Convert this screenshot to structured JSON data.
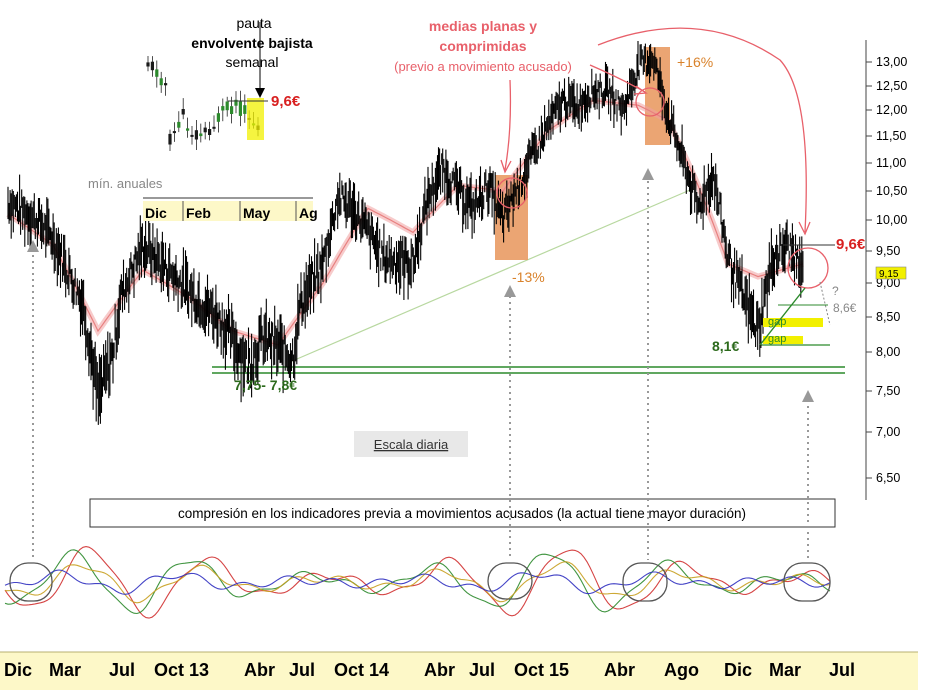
{
  "chart_data": {
    "type": "line",
    "title": "",
    "price_axis": {
      "ticks": [
        "13,00",
        "12,50",
        "12,00",
        "11,50",
        "11,00",
        "10,50",
        "10,00",
        "9,50",
        "9,00",
        "8,50",
        "8,00",
        "7,50",
        "7,00",
        "6,50"
      ],
      "tick_values": [
        13.0,
        12.5,
        12.0,
        11.5,
        11.0,
        10.5,
        10.0,
        9.5,
        9.0,
        8.5,
        8.0,
        7.5,
        7.0,
        6.5
      ],
      "ylim": [
        6.3,
        13.3
      ],
      "current_price_label": "9,15",
      "current_price": 9.15
    },
    "x_axis": {
      "labels": [
        "Dic",
        "Mar",
        "Jul",
        "Oct 13",
        "Abr",
        "Jul",
        "Oct 14",
        "Abr",
        "Jul",
        "Oct 15",
        "Abr",
        "Ago",
        "Dic",
        "Mar",
        "Jul"
      ],
      "label_months": [
        0,
        3,
        7,
        10,
        16,
        19,
        22,
        28,
        31,
        34,
        40,
        44,
        48,
        51,
        55
      ]
    },
    "series": [
      {
        "name": "",
        "color": "#000000",
        "months": [
          0,
          2,
          3,
          5,
          6,
          7,
          7.5,
          9,
          12,
          14,
          16,
          17,
          19,
          19.5,
          21,
          22,
          23,
          25,
          27,
          28,
          29,
          30,
          31,
          32,
          33,
          34,
          36,
          37,
          38,
          39,
          40,
          41,
          42,
          43,
          44,
          46,
          47,
          48,
          49,
          50,
          51,
          52,
          53
        ],
        "values": [
          10.3,
          10.0,
          9.7,
          8.7,
          7.4,
          8.0,
          8.8,
          9.6,
          8.9,
          8.5,
          7.85,
          8.2,
          7.95,
          8.7,
          9.3,
          10.4,
          10.2,
          9.4,
          9.3,
          10.4,
          10.9,
          10.5,
          10.2,
          10.6,
          10.0,
          10.6,
          11.7,
          12.2,
          12.1,
          12.4,
          12.4,
          12.0,
          12.9,
          13.1,
          11.9,
          10.2,
          10.8,
          9.4,
          8.8,
          8.3,
          9.4,
          9.6,
          9.15
        ]
      },
      {
        "name": "",
        "color": "#e88080",
        "months": [
          0,
          3,
          6,
          9,
          12,
          15,
          18,
          21,
          24,
          27,
          30,
          33,
          36,
          39,
          42,
          44,
          46,
          48,
          50,
          53
        ],
        "values": [
          10.1,
          9.6,
          8.3,
          9.2,
          8.8,
          8.3,
          8.1,
          9.0,
          10.2,
          9.8,
          10.6,
          10.5,
          11.6,
          12.2,
          12.1,
          11.8,
          10.6,
          9.3,
          9.1,
          9.3
        ]
      }
    ],
    "ma_band_color": "#f0a0a0",
    "annotations": {
      "medias_line1": "medias planas y",
      "medias_line2": "comprimidas",
      "medias_sub": "(previo a movimiento acusado)",
      "up_pct": "+16%",
      "down_pct": "-13%",
      "resistance_price": "9,6€",
      "target_price": "8,6€",
      "question_mark": "?",
      "support_recent": "8,1€",
      "support_old": "7,75- 7,8€",
      "gap_label_1": "gap",
      "gap_label_2": "gap",
      "scale_label": "Escala diaria",
      "indicators_note": "compresión en los indicadores previa a movimientos acusados (la actual tiene mayor duración)"
    },
    "inset": {
      "type": "candlestick",
      "title_line1": "pauta",
      "title_line2": "envolvente bajista",
      "title_line3": "semanal",
      "price_label": "9,6€",
      "min_label": "mín. anuales",
      "x_labels": [
        "Dic",
        "Feb",
        "May",
        "Ag"
      ]
    },
    "indicator_panel": {
      "series_colors": [
        "#d03030",
        "#2c8a2c",
        "#c8a020",
        "#3030c0"
      ],
      "highlight_circles": 5
    },
    "colors": {
      "support_line": "#2c8a2c",
      "resistance_text": "#d82020",
      "annotation_orange": "#d9822b",
      "annotation_pink": "#e8606a",
      "highlight_box": "#e8955a",
      "gap_yellow": "#f2f000",
      "axis_band": "#fdf8c8"
    }
  }
}
